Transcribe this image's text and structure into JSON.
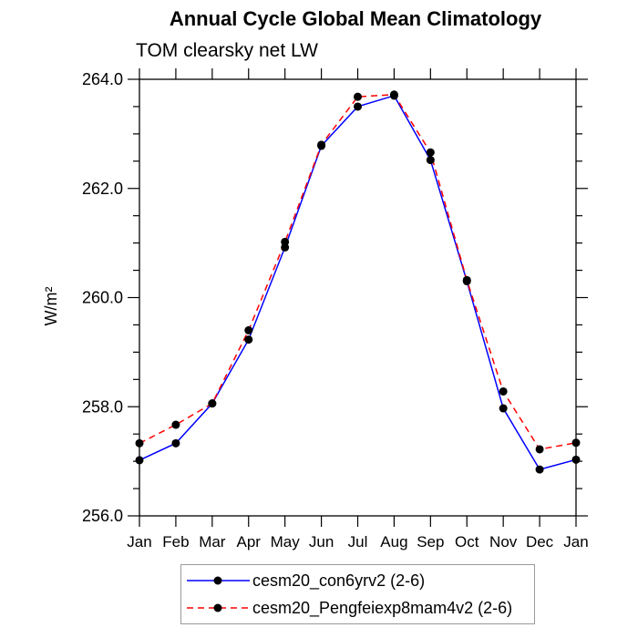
{
  "header": {
    "title": "Annual Cycle Global Mean Climatology",
    "subtitle": "TOM clearsky net LW"
  },
  "chart_data": {
    "type": "line",
    "title": "Annual Cycle Global Mean Climatology",
    "subtitle": "TOM clearsky net LW",
    "xlabel": "",
    "ylabel": "W/m²",
    "ylim": [
      256.0,
      264.0
    ],
    "yticks": [
      256.0,
      258.0,
      260.0,
      262.0,
      264.0
    ],
    "ytick_labels": [
      "256.0",
      "258.0",
      "260.0",
      "262.0",
      "264.0"
    ],
    "minor_tick_step": 0.5,
    "grid": false,
    "legend_position": "bottom",
    "categories": [
      "Jan",
      "Feb",
      "Mar",
      "Apr",
      "May",
      "Jun",
      "Jul",
      "Aug",
      "Sep",
      "Oct",
      "Nov",
      "Dec",
      "Jan"
    ],
    "series": [
      {
        "name": "cesm20_con6yrv2 (2-6)",
        "color": "#0000ff",
        "line_style": "solid",
        "marker": "filled-circle",
        "marker_color": "#000000",
        "values": [
          257.02,
          257.33,
          258.06,
          259.23,
          260.92,
          262.78,
          263.5,
          263.7,
          262.52,
          260.3,
          257.97,
          256.85,
          257.03
        ]
      },
      {
        "name": "cesm20_Pengfeiexp8mam4v2 (2-6)",
        "color": "#ff0000",
        "line_style": "dashed",
        "marker": "filled-circle",
        "marker_color": "#000000",
        "values": [
          257.33,
          257.67,
          258.06,
          259.4,
          261.02,
          262.8,
          263.68,
          263.72,
          262.66,
          260.32,
          258.28,
          257.22,
          257.34
        ]
      }
    ]
  }
}
